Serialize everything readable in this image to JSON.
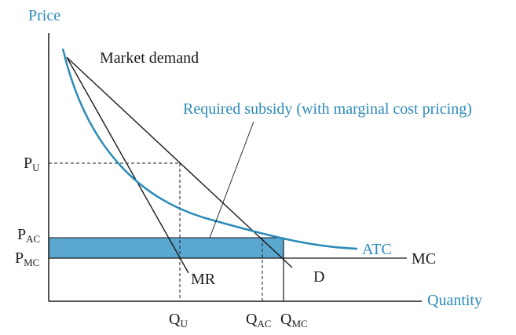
{
  "axes": {
    "y_label": "Price",
    "x_label": "Quantity"
  },
  "labels": {
    "market_demand": "Market demand",
    "subsidy": "Required subsidy (with marginal cost pricing)",
    "atc": "ATC",
    "mc": "MC",
    "mr": "MR",
    "demand": "D"
  },
  "y_ticks": {
    "pu": {
      "main": "P",
      "sub": "U"
    },
    "pac": {
      "main": "P",
      "sub": "AC"
    },
    "pmc": {
      "main": "P",
      "sub": "MC"
    }
  },
  "x_ticks": {
    "qu": {
      "main": "Q",
      "sub": "U"
    },
    "qac": {
      "main": "Q",
      "sub": "AC"
    },
    "qmc": {
      "main": "Q",
      "sub": "MC"
    }
  },
  "colors": {
    "accent": "#2b8bb8",
    "subsidy_fill": "#5aa7d0",
    "ink": "#1a1a1a"
  }
}
